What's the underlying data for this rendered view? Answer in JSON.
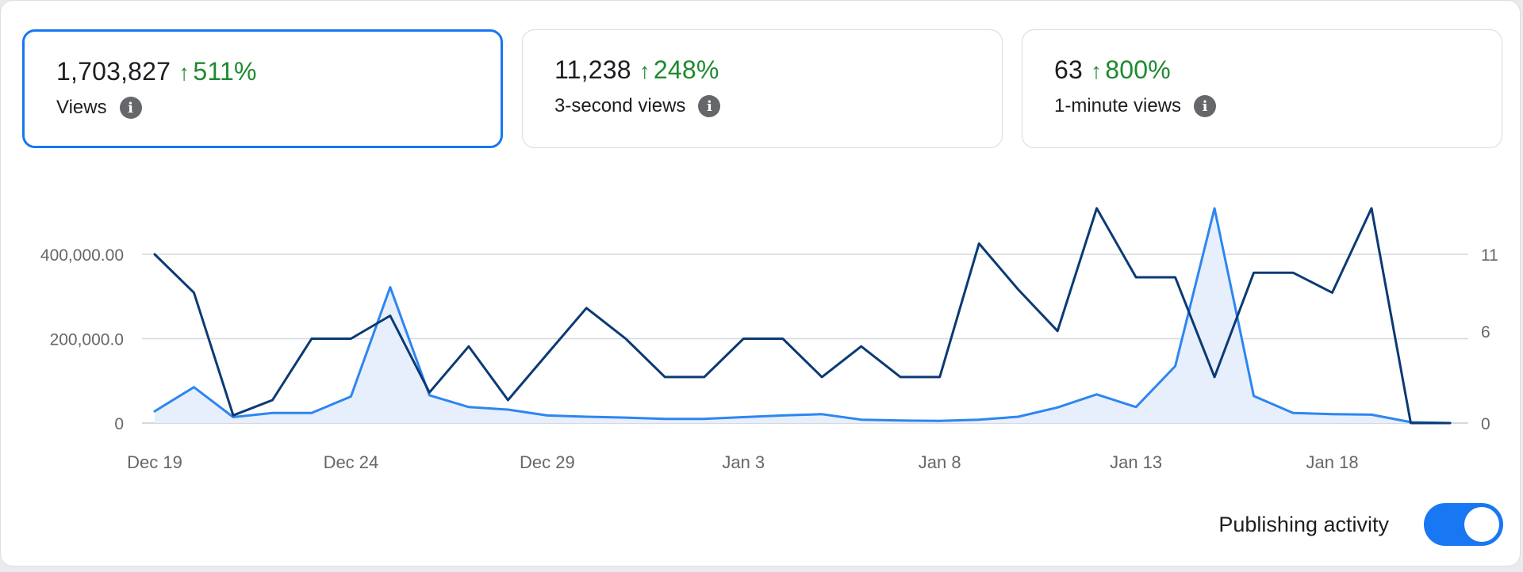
{
  "metrics": [
    {
      "value": "1,703,827",
      "arrow": "↑",
      "change": "511%",
      "label": "Views",
      "selected": true
    },
    {
      "value": "11,238",
      "arrow": "↑",
      "change": "248%",
      "label": "3-second views",
      "selected": false
    },
    {
      "value": "63",
      "arrow": "↑",
      "change": "800%",
      "label": "1-minute views",
      "selected": false
    }
  ],
  "info_icon_glyph": "i",
  "colors": {
    "accent": "#1877f2",
    "positive": "#1e8a2e",
    "views_line": "#2d86f0",
    "publishing_line": "#0b3a74",
    "area_fill": "#e7effc"
  },
  "toggle": {
    "label": "Publishing activity",
    "on": true
  },
  "chart_data": {
    "type": "line",
    "x": [
      "Dec 19",
      "Dec 20",
      "Dec 21",
      "Dec 22",
      "Dec 23",
      "Dec 24",
      "Dec 25",
      "Dec 26",
      "Dec 27",
      "Dec 28",
      "Dec 29",
      "Dec 30",
      "Dec 31",
      "Jan 1",
      "Jan 2",
      "Jan 3",
      "Jan 4",
      "Jan 5",
      "Jan 6",
      "Jan 7",
      "Jan 8",
      "Jan 9",
      "Jan 10",
      "Jan 11",
      "Jan 12",
      "Jan 13",
      "Jan 14",
      "Jan 15",
      "Jan 16",
      "Jan 17",
      "Jan 18",
      "Jan 19",
      "Jan 20",
      "Jan 21"
    ],
    "x_tick_labels": [
      "Dec 19",
      "Dec 24",
      "Dec 29",
      "Jan 3",
      "Jan 8",
      "Jan 13",
      "Jan 18"
    ],
    "x_tick_indices": [
      0,
      5,
      10,
      15,
      20,
      25,
      30
    ],
    "left_axis": {
      "ticks": [
        0,
        200000,
        400000
      ],
      "tick_labels": [
        "0",
        "200,000.0",
        "400,000.00"
      ],
      "max": 400000
    },
    "right_axis": {
      "ticks": [
        0,
        6,
        11
      ],
      "tick_labels": [
        "0",
        "6",
        "11"
      ],
      "max": 11
    },
    "grid": true,
    "series": [
      {
        "axis": "left",
        "fill": true,
        "values": [
          28000,
          85000,
          14000,
          24000,
          24000,
          63000,
          322000,
          66000,
          38000,
          32000,
          18000,
          15000,
          13000,
          10000,
          10000,
          14000,
          18000,
          21000,
          8000,
          6000,
          5000,
          8000,
          15000,
          37000,
          68000,
          38000,
          135000,
          509000,
          64000,
          24000,
          21000,
          20000,
          2000,
          0
        ]
      },
      {
        "axis": "right",
        "fill": false,
        "values": [
          11,
          8.5,
          0.5,
          1.5,
          5.5,
          5.5,
          7,
          2,
          5,
          1.5,
          4.5,
          7.5,
          5.5,
          3,
          3,
          5.5,
          5.5,
          3,
          5,
          3,
          3,
          11.7,
          8.7,
          6,
          14,
          9.5,
          9.5,
          3,
          9.8,
          9.8,
          8.5,
          14,
          0,
          0
        ]
      }
    ]
  }
}
